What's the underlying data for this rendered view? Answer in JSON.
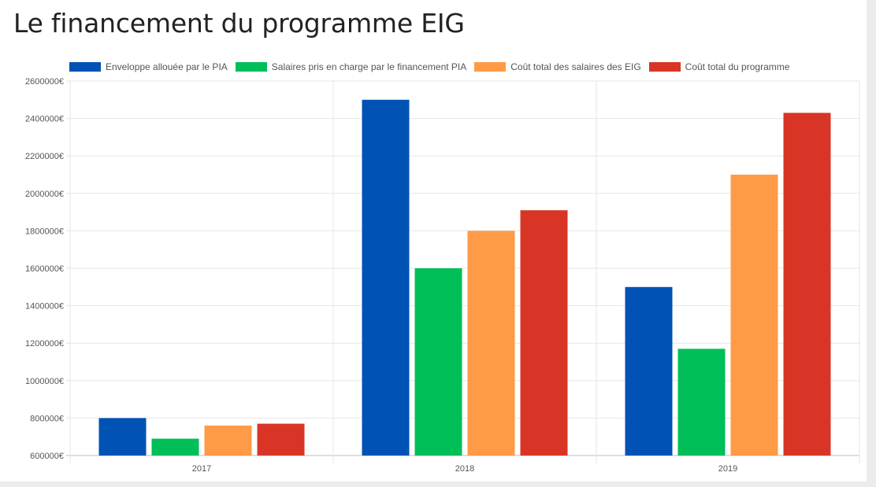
{
  "page": {
    "title": "Le financement du programme EIG"
  },
  "chart_data": {
    "type": "bar",
    "title": "Le financement du programme EIG",
    "xlabel": "",
    "ylabel": "",
    "categories": [
      "2017",
      "2018",
      "2019"
    ],
    "series": [
      {
        "name": "Enveloppe allouée par le PIA",
        "color": "#0052b4",
        "values": [
          800000,
          2500000,
          1500000
        ]
      },
      {
        "name": "Salaires pris en charge par le financement PIA",
        "color": "#00bf59",
        "values": [
          690000,
          1600000,
          1170000
        ]
      },
      {
        "name": "Coût total des salaires des EIG",
        "color": "#ff9a47",
        "values": [
          760000,
          1800000,
          2100000
        ]
      },
      {
        "name": "Coût total du programme",
        "color": "#d93526",
        "values": [
          770000,
          1910000,
          2430000
        ]
      }
    ],
    "ylim": [
      600000,
      2600000
    ],
    "y_ticks": [
      "600000€",
      "800000€",
      "1000000€",
      "1200000€",
      "1400000€",
      "1600000€",
      "1800000€",
      "2000000€",
      "2200000€",
      "2400000€",
      "2600000€"
    ],
    "y_tick_values": [
      600000,
      800000,
      1000000,
      1200000,
      1400000,
      1600000,
      1800000,
      2000000,
      2200000,
      2400000,
      2600000
    ],
    "grid": true,
    "legend_position": "top"
  }
}
